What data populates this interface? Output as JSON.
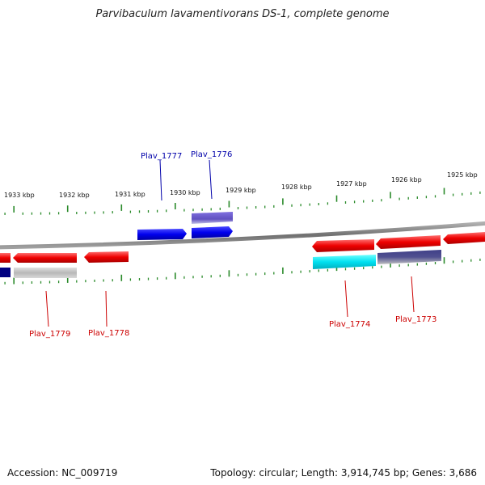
{
  "title": "Parvibaculum lavamentivorans DS-1, complete genome",
  "footer": {
    "accession": "Accession: NC_009719",
    "summary": "Topology: circular; Length: 3,914,745 bp; Genes: 3,686"
  },
  "axis": {
    "unit": "kbp",
    "ticks": [
      {
        "kbp": 1925,
        "label": "1925 kbp"
      },
      {
        "kbp": 1926,
        "label": "1926 kbp"
      },
      {
        "kbp": 1927,
        "label": "1927 kbp"
      },
      {
        "kbp": 1928,
        "label": "1928 kbp"
      },
      {
        "kbp": 1929,
        "label": "1929 kbp"
      },
      {
        "kbp": 1930,
        "label": "1930 kbp"
      },
      {
        "kbp": 1931,
        "label": "1931 kbp"
      },
      {
        "kbp": 1932,
        "label": "1932 kbp"
      },
      {
        "kbp": 1933,
        "label": "1933 kbp"
      }
    ]
  },
  "genes": [
    {
      "id": "g1",
      "label": "Plav_1777",
      "strand": "+",
      "color": "#0000ee",
      "label_color": "#0000aa"
    },
    {
      "id": "g2",
      "label": "Plav_1776",
      "strand": "+",
      "color": "#0000ee",
      "label_color": "#0000aa"
    },
    {
      "id": "g3",
      "label": "Plav_1779",
      "strand": "-",
      "color": "#ee0000",
      "label_color": "#cc0000"
    },
    {
      "id": "g4",
      "label": "Plav_1778",
      "strand": "-",
      "color": "#ee0000",
      "label_color": "#cc0000"
    },
    {
      "id": "g5",
      "label": "Plav_1774",
      "strand": "-",
      "color": "#ee0000",
      "label_color": "#cc0000"
    },
    {
      "id": "g6",
      "label": "Plav_1773",
      "strand": "-",
      "color": "#ee0000",
      "label_color": "#cc0000"
    }
  ],
  "colors": {
    "backbone": "#808080",
    "tick": "#2a8a2a",
    "feature_blue": "#0000ee",
    "feature_red": "#ee0000",
    "feature_gray": "#b0b0b0",
    "feature_purple": "#7060c8",
    "feature_cyan": "#00e0f0",
    "feature_navy": "#000080",
    "feature_slate": "#505090"
  }
}
